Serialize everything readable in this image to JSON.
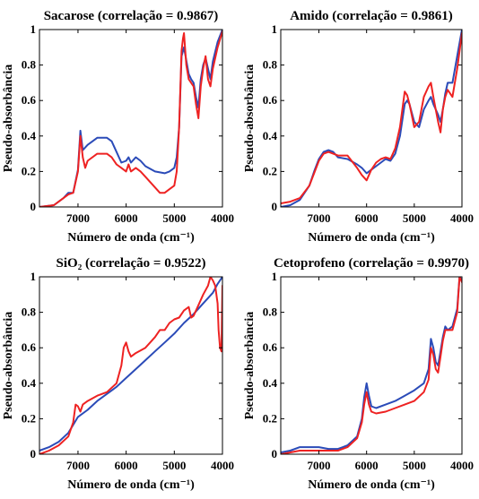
{
  "chart_data": [
    {
      "type": "line",
      "title": "Sacarose (correlação = 0.9867)",
      "xlabel": "Número de onda (cm⁻¹)",
      "ylabel": "Pseudo-absorbância",
      "xlim": [
        7800,
        4000
      ],
      "ylim": [
        0,
        1
      ],
      "x_reversed": true,
      "xticks": [
        7000,
        6000,
        5000,
        4000
      ],
      "yticks": [
        0,
        0.2,
        0.4,
        0.6,
        0.8,
        1
      ],
      "series": [
        {
          "color": "#2b4bb8",
          "x": [
            7800,
            7500,
            7300,
            7200,
            7100,
            7000,
            6950,
            6900,
            6800,
            6600,
            6400,
            6300,
            6200,
            6100,
            6000,
            5950,
            5900,
            5800,
            5700,
            5600,
            5400,
            5200,
            5100,
            5000,
            4950,
            4900,
            4850,
            4800,
            4700,
            4650,
            4600,
            4550,
            4500,
            4450,
            4400,
            4350,
            4300,
            4250,
            4200,
            4100,
            4000
          ],
          "y": [
            0.0,
            0.01,
            0.05,
            0.08,
            0.08,
            0.21,
            0.43,
            0.32,
            0.35,
            0.39,
            0.39,
            0.37,
            0.31,
            0.25,
            0.26,
            0.28,
            0.25,
            0.28,
            0.26,
            0.23,
            0.2,
            0.19,
            0.2,
            0.22,
            0.28,
            0.45,
            0.85,
            0.9,
            0.75,
            0.72,
            0.7,
            0.62,
            0.56,
            0.72,
            0.8,
            0.84,
            0.78,
            0.72,
            0.82,
            0.93,
            1.0
          ]
        },
        {
          "color": "#ee2222",
          "x": [
            7800,
            7500,
            7300,
            7200,
            7100,
            7000,
            6950,
            6900,
            6850,
            6800,
            6600,
            6400,
            6300,
            6200,
            6100,
            6000,
            5950,
            5900,
            5800,
            5700,
            5600,
            5400,
            5300,
            5200,
            5100,
            5000,
            4950,
            4900,
            4850,
            4820,
            4800,
            4750,
            4700,
            4650,
            4600,
            4550,
            4500,
            4450,
            4400,
            4350,
            4300,
            4250,
            4200,
            4100,
            4000
          ],
          "y": [
            0.0,
            0.01,
            0.05,
            0.07,
            0.08,
            0.2,
            0.4,
            0.28,
            0.22,
            0.26,
            0.3,
            0.3,
            0.28,
            0.24,
            0.22,
            0.2,
            0.24,
            0.2,
            0.22,
            0.2,
            0.17,
            0.11,
            0.08,
            0.08,
            0.1,
            0.12,
            0.2,
            0.45,
            0.88,
            0.95,
            0.98,
            0.8,
            0.72,
            0.7,
            0.68,
            0.58,
            0.5,
            0.68,
            0.78,
            0.85,
            0.72,
            0.68,
            0.78,
            0.9,
            0.99
          ]
        }
      ]
    },
    {
      "type": "line",
      "title": "Amido (correlação = 0.9861)",
      "xlabel": "Número de onda (cm⁻¹)",
      "ylabel": "Pseudo-absorbância",
      "xlim": [
        7800,
        4000
      ],
      "ylim": [
        0,
        1
      ],
      "x_reversed": true,
      "xticks": [
        7000,
        6000,
        5000,
        4000
      ],
      "yticks": [
        0,
        0.2,
        0.4,
        0.6,
        0.8,
        1
      ],
      "series": [
        {
          "color": "#2b4bb8",
          "x": [
            7800,
            7600,
            7400,
            7200,
            7100,
            7000,
            6900,
            6800,
            6700,
            6600,
            6400,
            6200,
            6100,
            6000,
            5900,
            5800,
            5700,
            5600,
            5500,
            5400,
            5300,
            5200,
            5150,
            5100,
            5000,
            4900,
            4800,
            4700,
            4650,
            4600,
            4500,
            4450,
            4400,
            4350,
            4300,
            4200,
            4100,
            4000
          ],
          "y": [
            0.0,
            0.01,
            0.04,
            0.12,
            0.2,
            0.27,
            0.31,
            0.32,
            0.31,
            0.28,
            0.27,
            0.24,
            0.22,
            0.19,
            0.21,
            0.23,
            0.25,
            0.27,
            0.26,
            0.3,
            0.4,
            0.58,
            0.6,
            0.58,
            0.48,
            0.45,
            0.55,
            0.6,
            0.62,
            0.58,
            0.52,
            0.48,
            0.55,
            0.64,
            0.7,
            0.7,
            0.85,
            1.0
          ]
        },
        {
          "color": "#ee2222",
          "x": [
            7800,
            7600,
            7400,
            7200,
            7100,
            7000,
            6900,
            6800,
            6700,
            6600,
            6400,
            6200,
            6100,
            6000,
            5900,
            5800,
            5700,
            5600,
            5500,
            5400,
            5300,
            5200,
            5150,
            5100,
            5000,
            4900,
            4800,
            4700,
            4650,
            4600,
            4500,
            4450,
            4400,
            4350,
            4300,
            4200,
            4100,
            4000
          ],
          "y": [
            0.02,
            0.03,
            0.05,
            0.12,
            0.19,
            0.26,
            0.3,
            0.31,
            0.3,
            0.29,
            0.29,
            0.22,
            0.18,
            0.15,
            0.21,
            0.25,
            0.27,
            0.28,
            0.27,
            0.33,
            0.45,
            0.65,
            0.63,
            0.58,
            0.45,
            0.48,
            0.62,
            0.68,
            0.7,
            0.62,
            0.48,
            0.42,
            0.55,
            0.62,
            0.66,
            0.62,
            0.78,
            0.98
          ]
        }
      ]
    },
    {
      "type": "line",
      "title": "SiO₂ (correlação = 0.9522)",
      "xlabel": "Número de onda (cm⁻¹)",
      "ylabel": "Pseudo-absorbância",
      "xlim": [
        7800,
        4000
      ],
      "ylim": [
        0,
        1
      ],
      "x_reversed": true,
      "xticks": [
        7000,
        6000,
        5000,
        4000
      ],
      "yticks": [
        0,
        0.2,
        0.4,
        0.6,
        0.8,
        1
      ],
      "series": [
        {
          "color": "#2b4bb8",
          "x": [
            7800,
            7600,
            7400,
            7200,
            7000,
            6800,
            6600,
            6400,
            6200,
            6000,
            5800,
            5600,
            5400,
            5200,
            5000,
            4800,
            4600,
            4400,
            4200,
            4100,
            4000
          ],
          "y": [
            0.02,
            0.04,
            0.07,
            0.12,
            0.21,
            0.25,
            0.3,
            0.34,
            0.38,
            0.43,
            0.48,
            0.53,
            0.58,
            0.63,
            0.68,
            0.74,
            0.79,
            0.85,
            0.91,
            0.96,
            1.0
          ]
        },
        {
          "color": "#ee2222",
          "x": [
            7800,
            7600,
            7400,
            7200,
            7100,
            7050,
            7000,
            6950,
            6900,
            6800,
            6600,
            6400,
            6200,
            6100,
            6050,
            6000,
            5950,
            5900,
            5800,
            5600,
            5400,
            5300,
            5200,
            5100,
            5000,
            4900,
            4800,
            4700,
            4650,
            4600,
            4500,
            4400,
            4300,
            4250,
            4200,
            4150,
            4100,
            4080,
            4050,
            4020,
            4000
          ],
          "y": [
            0.0,
            0.02,
            0.05,
            0.1,
            0.18,
            0.28,
            0.27,
            0.24,
            0.28,
            0.3,
            0.33,
            0.35,
            0.4,
            0.5,
            0.6,
            0.63,
            0.58,
            0.55,
            0.57,
            0.6,
            0.66,
            0.7,
            0.7,
            0.74,
            0.76,
            0.77,
            0.81,
            0.83,
            0.77,
            0.78,
            0.84,
            0.9,
            0.95,
            1.0,
            0.98,
            0.95,
            0.85,
            0.7,
            0.6,
            0.58,
            0.95
          ]
        }
      ]
    },
    {
      "type": "line",
      "title": "Cetoprofeno (correlação = 0.9970)",
      "xlabel": "Número de onda (cm⁻¹)",
      "ylabel": "Pseudo-absorbância",
      "xlim": [
        7800,
        4000
      ],
      "ylim": [
        0,
        1
      ],
      "x_reversed": true,
      "xticks": [
        7000,
        6000,
        5000,
        4000
      ],
      "yticks": [
        0,
        0.2,
        0.4,
        0.6,
        0.8,
        1
      ],
      "series": [
        {
          "color": "#2b4bb8",
          "x": [
            7800,
            7600,
            7400,
            7200,
            7000,
            6800,
            6600,
            6400,
            6200,
            6100,
            6050,
            6000,
            5950,
            5900,
            5800,
            5600,
            5400,
            5200,
            5000,
            4800,
            4700,
            4650,
            4600,
            4550,
            4500,
            4450,
            4400,
            4350,
            4300,
            4200,
            4100,
            4050,
            4000
          ],
          "y": [
            0.01,
            0.02,
            0.04,
            0.04,
            0.04,
            0.03,
            0.03,
            0.05,
            0.1,
            0.2,
            0.32,
            0.4,
            0.33,
            0.27,
            0.26,
            0.28,
            0.3,
            0.33,
            0.36,
            0.4,
            0.48,
            0.65,
            0.6,
            0.52,
            0.5,
            0.58,
            0.66,
            0.72,
            0.7,
            0.72,
            0.82,
            1.0,
            0.98
          ]
        },
        {
          "color": "#ee2222",
          "x": [
            7800,
            7600,
            7400,
            7200,
            7000,
            6800,
            6600,
            6400,
            6200,
            6100,
            6050,
            6000,
            5950,
            5900,
            5800,
            5600,
            5400,
            5200,
            5000,
            4800,
            4700,
            4650,
            4600,
            4550,
            4500,
            4450,
            4400,
            4350,
            4300,
            4200,
            4100,
            4050,
            4000
          ],
          "y": [
            0.0,
            0.01,
            0.02,
            0.02,
            0.02,
            0.02,
            0.02,
            0.04,
            0.09,
            0.18,
            0.28,
            0.35,
            0.28,
            0.24,
            0.23,
            0.24,
            0.26,
            0.28,
            0.3,
            0.35,
            0.42,
            0.6,
            0.56,
            0.48,
            0.46,
            0.55,
            0.64,
            0.7,
            0.7,
            0.7,
            0.8,
            1.0,
            0.97
          ]
        }
      ]
    }
  ]
}
